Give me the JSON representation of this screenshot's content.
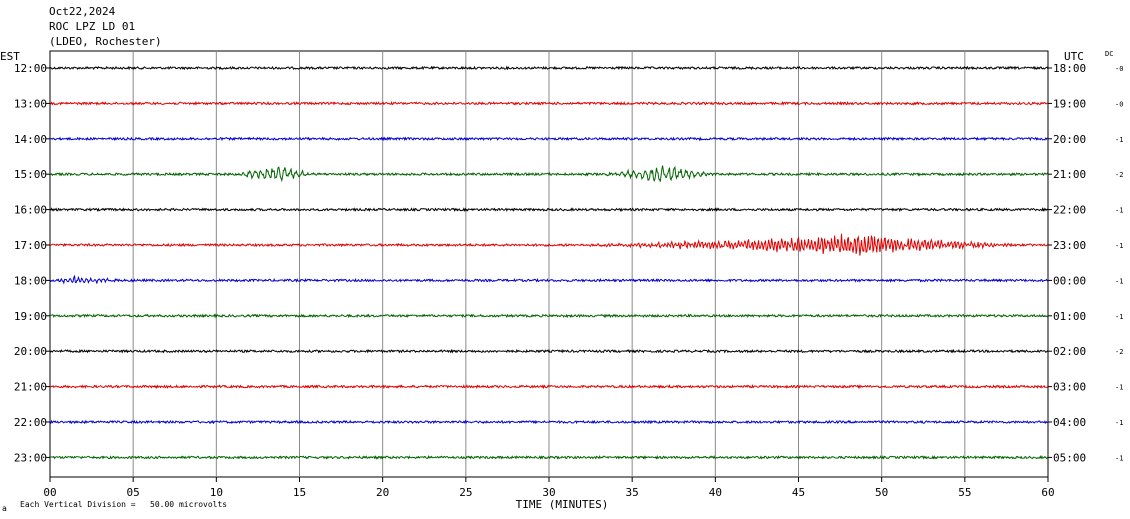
{
  "header": {
    "date": "Oct22,2024",
    "station": "ROC LPZ LD 01",
    "network": "(LDEO, Rochester)",
    "left_tz": "EST",
    "right_tz": "UTC",
    "dc_label": "DC"
  },
  "footer": {
    "scale_note": "Each Vertical Division =   50.00 microvolts",
    "corner_mark": "a"
  },
  "chart_data": {
    "type": "line",
    "title": "",
    "xlabel": "TIME (MINUTES)",
    "ylabel": "",
    "xlim": [
      0,
      60
    ],
    "x_ticks": [
      "00",
      "05",
      "10",
      "15",
      "20",
      "25",
      "30",
      "35",
      "40",
      "45",
      "50",
      "55",
      "60"
    ],
    "grid": true,
    "trace_colors": [
      "#000000",
      "#e00000",
      "#0000d0",
      "#006400"
    ],
    "rows": [
      {
        "est": "12:00",
        "utc": "18:00",
        "dc": "-0",
        "color": "#000000",
        "events": []
      },
      {
        "est": "13:00",
        "utc": "19:00",
        "dc": "-0",
        "color": "#e00000",
        "events": []
      },
      {
        "est": "14:00",
        "utc": "20:00",
        "dc": "-1",
        "color": "#0000d0",
        "events": []
      },
      {
        "est": "15:00",
        "utc": "21:00",
        "dc": "-2",
        "color": "#006400",
        "events": [
          {
            "start": 10,
            "end": 16,
            "peak": 13.7,
            "amplitude": 10,
            "period_min": 0.35
          },
          {
            "start": 33,
            "end": 40,
            "peak": 37,
            "amplitude": 10,
            "period_min": 0.35
          }
        ]
      },
      {
        "est": "16:00",
        "utc": "22:00",
        "dc": "-1",
        "color": "#000000",
        "events": []
      },
      {
        "est": "17:00",
        "utc": "23:00",
        "dc": "-1",
        "color": "#e00000",
        "events": [
          {
            "start": 29.5,
            "end": 59,
            "peak": 48,
            "amplitude": 11,
            "period_min": 0.2
          }
        ]
      },
      {
        "est": "18:00",
        "utc": "00:00",
        "dc": "-1",
        "color": "#0000d0",
        "events": [
          {
            "start": 0,
            "end": 5,
            "peak": 1.5,
            "amplitude": 4,
            "period_min": 0.25
          }
        ]
      },
      {
        "est": "19:00",
        "utc": "01:00",
        "dc": "-1",
        "color": "#006400",
        "events": []
      },
      {
        "est": "20:00",
        "utc": "02:00",
        "dc": "-2",
        "color": "#000000",
        "events": []
      },
      {
        "est": "21:00",
        "utc": "03:00",
        "dc": "-1",
        "color": "#e00000",
        "events": []
      },
      {
        "est": "22:00",
        "utc": "04:00",
        "dc": "-1",
        "color": "#0000d0",
        "events": []
      },
      {
        "est": "23:00",
        "utc": "05:00",
        "dc": "-1",
        "color": "#006400",
        "events": []
      }
    ]
  }
}
